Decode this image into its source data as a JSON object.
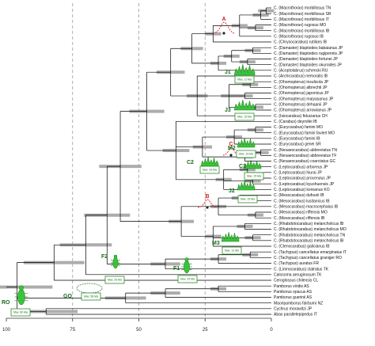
{
  "axis": {
    "ticks": [
      "100",
      "75",
      "50",
      "25",
      "0"
    ],
    "tick_values": [
      100,
      75,
      50,
      25,
      0
    ]
  },
  "colors": {
    "branch": "#000000",
    "bar": "#9e9e9e",
    "node_marker": "#2e8b2e",
    "mountain": "#39c439",
    "box_border": "#2e8b2e",
    "dist_curve": "#e02020",
    "dist_label": "#cc2020",
    "gridline": "#9a9a9a"
  },
  "taxa": [
    "C. (Macrothorax) morbillosus TN",
    "C. (Macrothorax) morbillosus SR",
    "C. (Macrothorax) morbillosus IT",
    "C. (Macrothorax) rugosus MO",
    "C. (Macrothorax) morbillosus IB",
    "C. (Macrothorax) rugosus IB",
    "C. (Chrysocarabus) rutilans IB",
    "C. (Damaster) blaptoides babaianus JP",
    "C. (Damaster) blaptoides rugipennis JP",
    "C. (Damaster) blaptoides fortunei JP",
    "C. (Damaster) blaptoides okuroides JP",
    "C. (Acoptolabrus) schencki RU",
    "C. (Archicarabus) nemoralis IB",
    "C. (Ohomopterus) insulicola JP",
    "C. (Ohomopterus) albrechti JP",
    "C. (Ohomopterus) japonicus JP",
    "C. (Ohomopterus) maiyasanus JP",
    "C. (Ohomopterus) dehaanii JP",
    "C. (Ohomopterus) arrowianus JP",
    "C. (Isiocarabus) fiduciarius CH",
    "C. (Carabus) deyrollei IB",
    "C. (Eurycarabus) famini MO",
    "C. (Eurycarabus) famini faviert MO",
    "C. (Eurycarabus) famini IB",
    "C. (Eurycarabus) genei SR",
    "C. (Nesaeocarabus) abbreviatus TN",
    "C. (Nesaeocarabus) abbreviatus TF",
    "C. (Nesaeocarabus) coarctatus GC",
    "C. (Leptocarabus) arboreus JP",
    "C. (Leptocarabus) hiurai JP",
    "C. (Leptocarabus) procerulus JP",
    "C. (Leptocarabus) kyushuensis JP",
    "C. (Leptocarabus) koreanus KO",
    "C. (Mesocarabus) dufourii IB",
    "C. (Mesocarabus) lusitanicus IB",
    "C. (Mesocarabus) macrocephalus IB",
    "C. (Mesocarabus) riffensis MO",
    "C. (Mesocarabus) riffensis IB",
    "C. (Rhabdotocarabus) melancholicus IB",
    "C. (Rhabdotocarabus) melancholicus MO",
    "C. (Rhabdotocarabus) melancholicus TN",
    "C. (Rhabdotocarabus) melancholicus IB",
    "C. (Ctenocarabus) galicianus IB",
    "C. (Tachypus) cancellatus emarginatus IT",
    "C. (Tachypus) cancellatus graniger RO",
    "C. (Tachypus) auratus FR",
    "C. (Limnocarabus) clatratus TK",
    "Calosoma aeruginosum TK",
    "Ceroglossus chilensis CL",
    "Pamborus viridis AS",
    "Pamborus opacus AS",
    "Pamborus guerinii AS",
    "Maoripamborus fairburni NZ",
    "Cychrus morawitzi JP",
    "Abax parallelepipedus IT"
  ],
  "nodes": {
    "A": {
      "label": "A"
    },
    "B": {
      "label": "B"
    },
    "C": {
      "label": "C"
    },
    "J1": {
      "label": "J1",
      "box": "Max. 11 Ma"
    },
    "J2": {
      "label": "J2",
      "box": "Max. 15 Ma"
    },
    "J3": {
      "label": "J3",
      "box": "Max. 15 Ma"
    },
    "M2": {
      "label": "M2",
      "box": "Max. 15 Ma"
    },
    "M3": {
      "label": "M3",
      "box": "Max. 12 Ma"
    },
    "C2": {
      "label": "C2",
      "box": "Max. 33 Ma"
    },
    "C3": {
      "label": "C3",
      "box": "Max. 15 Ma"
    },
    "F1": {
      "label": "F1",
      "box": "Max. 25 Ma"
    },
    "F2": {
      "label": "F2",
      "box": "Max. 25 Ma"
    },
    "GO": {
      "label": "GO",
      "box": "Max. 58 Ma"
    },
    "RO": {
      "label": "RO",
      "box": "Max. 80 Ma"
    }
  }
}
